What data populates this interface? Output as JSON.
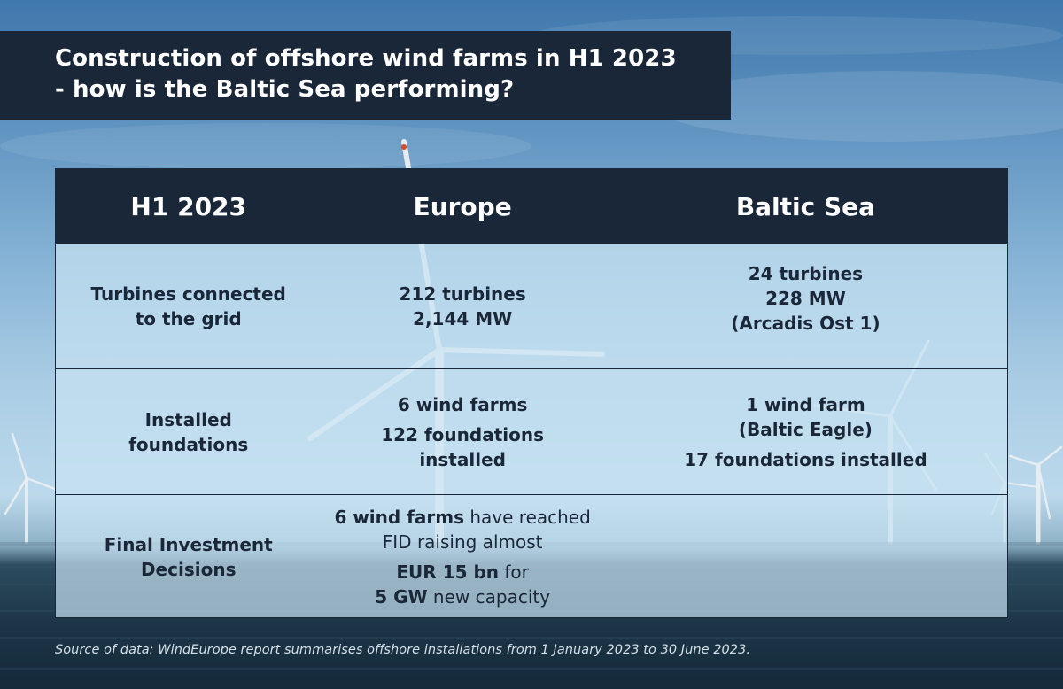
{
  "title": {
    "line1": "Construction of offshore wind farms in H1 2023",
    "line2": "- how is the Baltic Sea performing?"
  },
  "table": {
    "headers": [
      "H1 2023",
      "Europe",
      "Baltic Sea"
    ],
    "rows": [
      {
        "label_lines": [
          "Turbines connected",
          "to the grid"
        ],
        "europe_lines": [
          "212 turbines",
          "2,144 MW"
        ],
        "baltic_lines": [
          "24 turbines",
          "228 MW",
          "(Arcadis Ost 1)"
        ]
      },
      {
        "label_lines": [
          "Installed",
          "foundations"
        ],
        "europe_lines": [
          "6 wind farms",
          "122 foundations",
          "installed"
        ],
        "baltic_lines": [
          "1 wind farm",
          "(Baltic Eagle)",
          "17 foundations installed"
        ]
      },
      {
        "label_lines": [
          "Final Investment",
          "Decisions"
        ],
        "europe_fid": {
          "line1_bold": "6 wind farms",
          "line1_rest": " have reached",
          "line2": "FID raising almost",
          "line3_bold": "EUR 15 bn",
          "line3_rest": " for",
          "line4_bold": "5 GW",
          "line4_rest": " new capacity"
        },
        "baltic_lines": []
      }
    ]
  },
  "source": "Source of data: WindEurope report summarises offshore installations from 1 January 2023 to 30 June 2023.",
  "colors": {
    "navy": "#1a2738",
    "table_fill": "#c8e2f2"
  }
}
